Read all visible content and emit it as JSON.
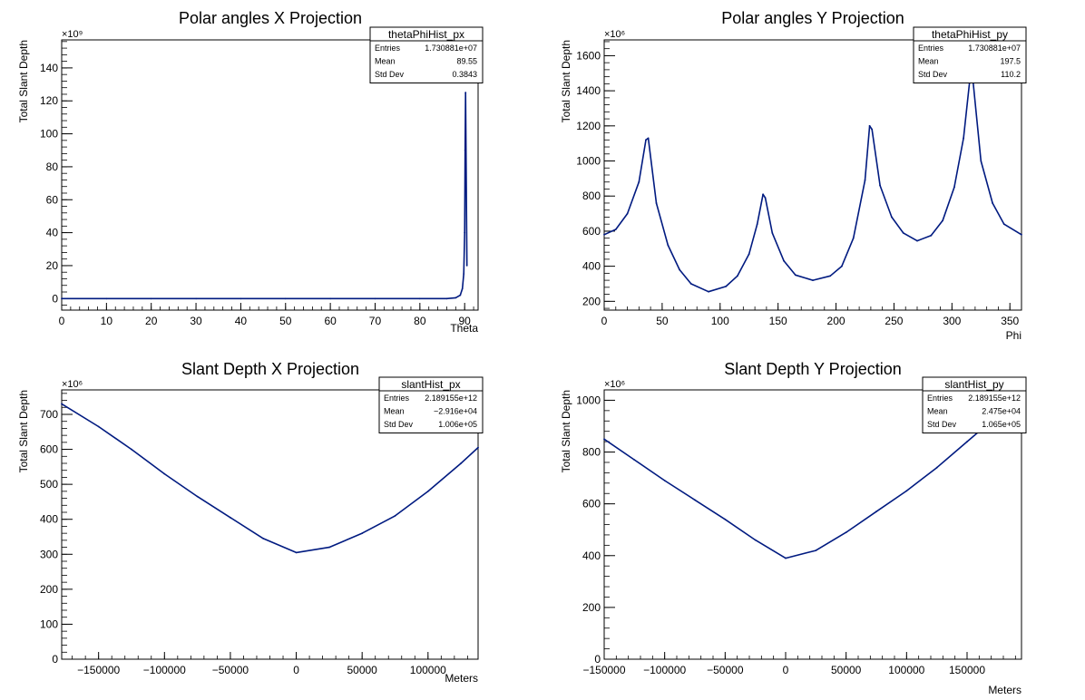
{
  "chart_data": [
    {
      "type": "line",
      "title": "Polar angles X Projection",
      "xlabel": "Theta",
      "ylabel": "Total Slant Depth",
      "multiplier": "×10⁹",
      "xlim": [
        0,
        93
      ],
      "ylim": [
        -7,
        157
      ],
      "xticks": [
        0,
        10,
        20,
        30,
        40,
        50,
        60,
        70,
        80,
        90
      ],
      "yticks": [
        0,
        20,
        40,
        60,
        80,
        100,
        120,
        140
      ],
      "stats": {
        "name": "thetaPhiHist_px",
        "entries": "1.730881e+07",
        "mean": "89.55",
        "std_dev": "0.3843"
      },
      "series": [
        {
          "x": [
            0,
            10,
            20,
            30,
            40,
            50,
            60,
            70,
            80,
            86,
            88,
            89,
            89.5,
            89.8,
            90,
            90.1,
            90.2,
            90.5
          ],
          "values": [
            0,
            0,
            0,
            0,
            0,
            0,
            0,
            0,
            0,
            0,
            0.5,
            2,
            6,
            15,
            40,
            90,
            125,
            20
          ]
        }
      ]
    },
    {
      "type": "line",
      "title": "Polar angles Y Projection",
      "xlabel": "Phi",
      "ylabel": "Total Slant Depth",
      "multiplier": "×10⁶",
      "xlim": [
        0,
        360
      ],
      "ylim": [
        150,
        1690
      ],
      "xticks": [
        0,
        50,
        100,
        150,
        200,
        250,
        300,
        350
      ],
      "yticks": [
        200,
        400,
        600,
        800,
        1000,
        1200,
        1400,
        1600
      ],
      "stats": {
        "name": "thetaPhiHist_py",
        "entries": "1.730881e+07",
        "mean": "197.5",
        "std_dev": "110.2"
      },
      "series": [
        {
          "x": [
            0,
            10,
            20,
            30,
            36,
            38,
            45,
            55,
            65,
            75,
            90,
            105,
            115,
            125,
            132,
            137,
            139,
            145,
            155,
            165,
            180,
            195,
            205,
            215,
            225,
            229,
            231,
            238,
            248,
            258,
            270,
            282,
            292,
            302,
            310,
            316,
            318,
            325,
            335,
            345,
            360
          ],
          "values": [
            580,
            610,
            700,
            880,
            1120,
            1130,
            760,
            520,
            380,
            300,
            255,
            285,
            345,
            470,
            640,
            810,
            790,
            590,
            430,
            350,
            320,
            345,
            400,
            560,
            890,
            1200,
            1180,
            860,
            680,
            590,
            545,
            575,
            660,
            850,
            1130,
            1500,
            1470,
            1000,
            760,
            640,
            580
          ]
        }
      ]
    },
    {
      "type": "line",
      "title": "Slant Depth X Projection",
      "xlabel": "Meters",
      "ylabel": "Total Slant Depth",
      "multiplier": "×10⁶",
      "xlim": [
        -178000,
        138000
      ],
      "ylim": [
        0,
        770
      ],
      "xticks": [
        -150000,
        -100000,
        -50000,
        0,
        50000,
        100000
      ],
      "yticks": [
        0,
        100,
        200,
        300,
        400,
        500,
        600,
        700
      ],
      "stats": {
        "name": "slantHist_px",
        "entries": "2.189155e+12",
        "mean": "−2.916e+04",
        "std_dev": "1.006e+05"
      },
      "series": [
        {
          "x": [
            -178000,
            -150000,
            -125000,
            -100000,
            -75000,
            -50000,
            -25000,
            0,
            25000,
            50000,
            75000,
            100000,
            125000,
            138000
          ],
          "values": [
            730,
            665,
            600,
            530,
            465,
            405,
            345,
            305,
            320,
            360,
            410,
            480,
            560,
            605
          ]
        }
      ]
    },
    {
      "type": "line",
      "title": "Slant Depth Y Projection",
      "xlabel": "Meters",
      "ylabel": "Total Slant Depth",
      "multiplier": "×10⁶",
      "xlim": [
        -150000,
        195000
      ],
      "ylim": [
        0,
        1040
      ],
      "xticks": [
        -150000,
        -100000,
        -50000,
        0,
        50000,
        100000,
        150000
      ],
      "yticks": [
        0,
        200,
        400,
        600,
        800,
        1000
      ],
      "stats": {
        "name": "slantHist_py",
        "entries": "2.189155e+12",
        "mean": "2.475e+04",
        "std_dev": "1.065e+05"
      },
      "series": [
        {
          "x": [
            -150000,
            -125000,
            -100000,
            -75000,
            -50000,
            -25000,
            0,
            25000,
            50000,
            75000,
            100000,
            125000,
            150000,
            175000,
            195000
          ],
          "values": [
            850,
            770,
            690,
            615,
            540,
            460,
            390,
            420,
            490,
            570,
            650,
            740,
            840,
            940,
            1030
          ]
        }
      ]
    }
  ]
}
